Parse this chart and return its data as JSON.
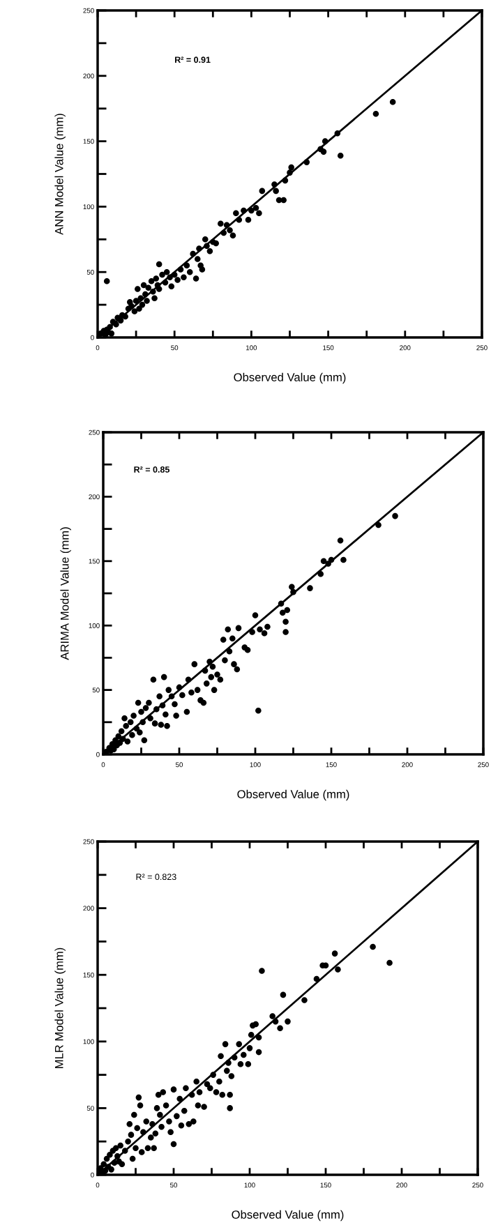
{
  "chart_data": [
    {
      "type": "scatter",
      "xlabel": "Observed Value (mm)",
      "ylabel": "ANN Model Value (mm)",
      "annotations": [
        "R² = 0.91"
      ],
      "xlim": [
        0,
        250
      ],
      "ylim": [
        0,
        250
      ],
      "grid": false,
      "xticks": [
        0,
        {
          "value": 25,
          "label": null
        },
        50,
        {
          "value": 75,
          "label": null
        },
        100,
        {
          "value": 125,
          "label": null
        },
        150,
        {
          "value": 175,
          "label": null
        },
        200,
        {
          "value": 225,
          "label": null
        },
        250
      ],
      "yticks": [
        0,
        {
          "value": 25,
          "label": null
        },
        50,
        {
          "value": 75,
          "label": null
        },
        100,
        {
          "value": 125,
          "label": null
        },
        150,
        {
          "value": 175,
          "label": null
        },
        200,
        {
          "value": 225,
          "label": null
        },
        250
      ],
      "series": [
        {
          "marker": "circle",
          "color": "#000000",
          "x": [
            2,
            4,
            5,
            6,
            7,
            8,
            9,
            10,
            12,
            13,
            15,
            16,
            18,
            6,
            20,
            21,
            22,
            24,
            25,
            26,
            27,
            28,
            29,
            30,
            31,
            32,
            33,
            35,
            36,
            37,
            38,
            39,
            40,
            40,
            42,
            44,
            45,
            47,
            48,
            50,
            52,
            54,
            56,
            58,
            60,
            62,
            64,
            65,
            66,
            67,
            68,
            70,
            71,
            73,
            75,
            77,
            80,
            82,
            84,
            86,
            88,
            90,
            92,
            95,
            98,
            100,
            103,
            105,
            107,
            115,
            116,
            118,
            121,
            122,
            125,
            126,
            136,
            145,
            147,
            148,
            156,
            158,
            181,
            192
          ],
          "values": [
            3,
            5,
            2,
            6,
            4,
            8,
            3,
            12,
            10,
            15,
            13,
            17,
            16,
            43,
            22,
            27,
            24,
            20,
            28,
            37,
            22,
            30,
            25,
            40,
            33,
            28,
            38,
            43,
            35,
            30,
            45,
            40,
            56,
            37,
            48,
            42,
            50,
            46,
            39,
            48,
            44,
            52,
            46,
            55,
            50,
            64,
            45,
            60,
            68,
            55,
            52,
            75,
            70,
            66,
            73,
            72,
            87,
            80,
            86,
            82,
            78,
            95,
            90,
            97,
            90,
            97,
            99,
            95,
            112,
            117,
            112,
            105,
            105,
            120,
            126,
            130,
            134,
            144,
            142,
            150,
            156,
            139,
            171,
            180
          ]
        },
        {
          "type": "line",
          "color": "#000000",
          "x": [
            0,
            250
          ],
          "values": [
            0,
            250
          ]
        }
      ]
    },
    {
      "type": "scatter",
      "xlabel": "Observed Value (mm)",
      "ylabel": "ARIMA Model Value (mm)",
      "annotations": [
        "R² = 0.85"
      ],
      "xlim": [
        0,
        250
      ],
      "ylim": [
        0,
        250
      ],
      "grid": false,
      "xticks": [
        0,
        {
          "value": 25,
          "label": null
        },
        50,
        {
          "value": 75,
          "label": null
        },
        100,
        {
          "value": 125,
          "label": null
        },
        150,
        {
          "value": 175,
          "label": null
        },
        200,
        {
          "value": 225,
          "label": null
        },
        250
      ],
      "yticks": [
        0,
        {
          "value": 25,
          "label": null
        },
        50,
        {
          "value": 75,
          "label": null
        },
        100,
        {
          "value": 125,
          "label": null
        },
        150,
        {
          "value": 175,
          "label": null
        },
        200,
        {
          "value": 225,
          "label": null
        },
        250
      ],
      "series": [
        {
          "marker": "circle",
          "color": "#000000",
          "x": [
            2,
            4,
            5,
            6,
            7,
            8,
            9,
            10,
            11,
            12,
            13,
            14,
            15,
            16,
            18,
            19,
            20,
            22,
            23,
            24,
            25,
            26,
            27,
            28,
            30,
            31,
            33,
            34,
            35,
            37,
            38,
            39,
            40,
            41,
            42,
            43,
            45,
            47,
            48,
            50,
            52,
            55,
            56,
            58,
            60,
            62,
            64,
            66,
            67,
            68,
            70,
            71,
            72,
            73,
            75,
            77,
            79,
            80,
            82,
            83,
            85,
            86,
            88,
            89,
            93,
            95,
            98,
            100,
            103,
            106,
            108,
            102,
            117,
            118,
            120,
            120,
            121,
            124,
            125,
            136,
            143,
            145,
            148,
            150,
            156,
            158,
            181,
            192
          ],
          "values": [
            2,
            5,
            3,
            8,
            4,
            11,
            7,
            14,
            9,
            18,
            12,
            28,
            22,
            10,
            25,
            15,
            30,
            20,
            40,
            17,
            33,
            25,
            11,
            36,
            40,
            28,
            58,
            24,
            35,
            45,
            23,
            38,
            60,
            31,
            22,
            50,
            45,
            39,
            30,
            52,
            46,
            33,
            58,
            48,
            70,
            50,
            42,
            40,
            65,
            55,
            72,
            60,
            68,
            50,
            62,
            58,
            89,
            73,
            97,
            80,
            90,
            70,
            66,
            98,
            83,
            81,
            95,
            108,
            97,
            94,
            99,
            34,
            117,
            110,
            103,
            95,
            112,
            130,
            126,
            129,
            140,
            150,
            148,
            151,
            166,
            151,
            178,
            185
          ]
        },
        {
          "type": "line",
          "color": "#000000",
          "x": [
            0,
            250
          ],
          "values": [
            0,
            250
          ]
        }
      ]
    },
    {
      "type": "scatter",
      "xlabel": "Observed Value (mm)",
      "ylabel": "MLR Model Value (mm)",
      "annotations": [
        "R² = 0.823"
      ],
      "xlim": [
        0,
        250
      ],
      "ylim": [
        0,
        250
      ],
      "grid": false,
      "xticks": [
        0,
        {
          "value": 25,
          "label": null
        },
        50,
        {
          "value": 75,
          "label": null
        },
        100,
        {
          "value": 125,
          "label": null
        },
        150,
        {
          "value": 175,
          "label": null
        },
        200,
        {
          "value": 225,
          "label": null
        },
        250
      ],
      "yticks": [
        0,
        {
          "value": 25,
          "label": null
        },
        50,
        {
          "value": 75,
          "label": null
        },
        100,
        {
          "value": 125,
          "label": null
        },
        150,
        {
          "value": 175,
          "label": null
        },
        200,
        {
          "value": 225,
          "label": null
        },
        250
      ],
      "series": [
        {
          "marker": "circle",
          "color": "#000000",
          "x": [
            1,
            2,
            3,
            4,
            5,
            6,
            7,
            8,
            9,
            10,
            11,
            12,
            13,
            14,
            15,
            16,
            18,
            20,
            21,
            22,
            23,
            24,
            25,
            26,
            27,
            28,
            29,
            30,
            32,
            33,
            35,
            36,
            37,
            38,
            39,
            40,
            41,
            42,
            43,
            45,
            47,
            48,
            50,
            50,
            52,
            54,
            55,
            57,
            58,
            60,
            62,
            63,
            65,
            66,
            67,
            70,
            72,
            74,
            76,
            78,
            80,
            81,
            82,
            84,
            85,
            86,
            87,
            88,
            87,
            90,
            93,
            94,
            96,
            99,
            100,
            101,
            102,
            104,
            106,
            106,
            108,
            115,
            117,
            120,
            122,
            125,
            136,
            144,
            148,
            150,
            156,
            158,
            181,
            192
          ],
          "values": [
            2,
            5,
            1,
            8,
            3,
            12,
            6,
            15,
            4,
            18,
            9,
            20,
            14,
            10,
            22,
            8,
            18,
            25,
            38,
            30,
            12,
            45,
            20,
            35,
            58,
            52,
            17,
            32,
            40,
            20,
            28,
            38,
            20,
            31,
            50,
            60,
            45,
            36,
            62,
            52,
            40,
            32,
            64,
            23,
            44,
            57,
            37,
            48,
            65,
            38,
            60,
            40,
            70,
            52,
            62,
            51,
            68,
            65,
            75,
            62,
            70,
            89,
            60,
            98,
            78,
            84,
            50,
            74,
            60,
            88,
            98,
            83,
            90,
            83,
            95,
            105,
            112,
            113,
            103,
            92,
            153,
            119,
            115,
            110,
            135,
            115,
            131,
            147,
            157,
            157,
            166,
            154,
            171,
            159
          ]
        },
        {
          "type": "line",
          "color": "#000000",
          "x": [
            0,
            250
          ],
          "values": [
            0,
            250
          ]
        }
      ]
    }
  ]
}
